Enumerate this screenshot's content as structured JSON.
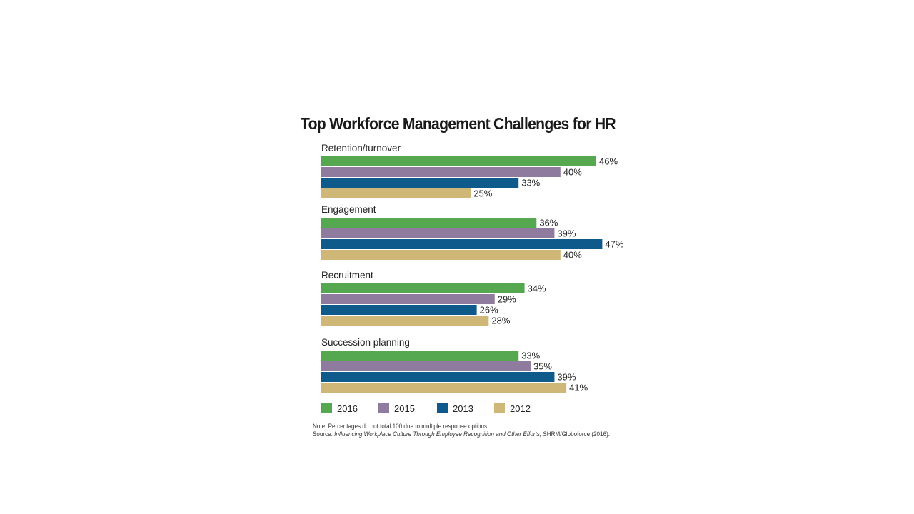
{
  "chart_data": {
    "type": "bar",
    "orientation": "horizontal",
    "title": "Top Workforce Management Challenges for HR",
    "categories": [
      "Retention/turnover",
      "Engagement",
      "Recruitment",
      "Succession planning"
    ],
    "series": [
      {
        "name": "2016",
        "color": "#55a84f",
        "values": [
          46,
          36,
          34,
          33
        ]
      },
      {
        "name": "2015",
        "color": "#8e7b9d",
        "values": [
          40,
          39,
          29,
          35
        ]
      },
      {
        "name": "2013",
        "color": "#0e5a8a",
        "values": [
          33,
          47,
          26,
          39
        ]
      },
      {
        "name": "2012",
        "color": "#cfb877",
        "values": [
          25,
          40,
          28,
          41
        ]
      }
    ],
    "value_suffix": "%",
    "grid": false,
    "legend": "bottom",
    "note": "Note: Percentages do not total 100 due to multiple response options.",
    "source_prefix": "Source: ",
    "source_title": "Influencing Workplace Culture Through Employee Recognition and Other Efforts,",
    "source_rest": " SHRM/Globoforce (2016)."
  }
}
